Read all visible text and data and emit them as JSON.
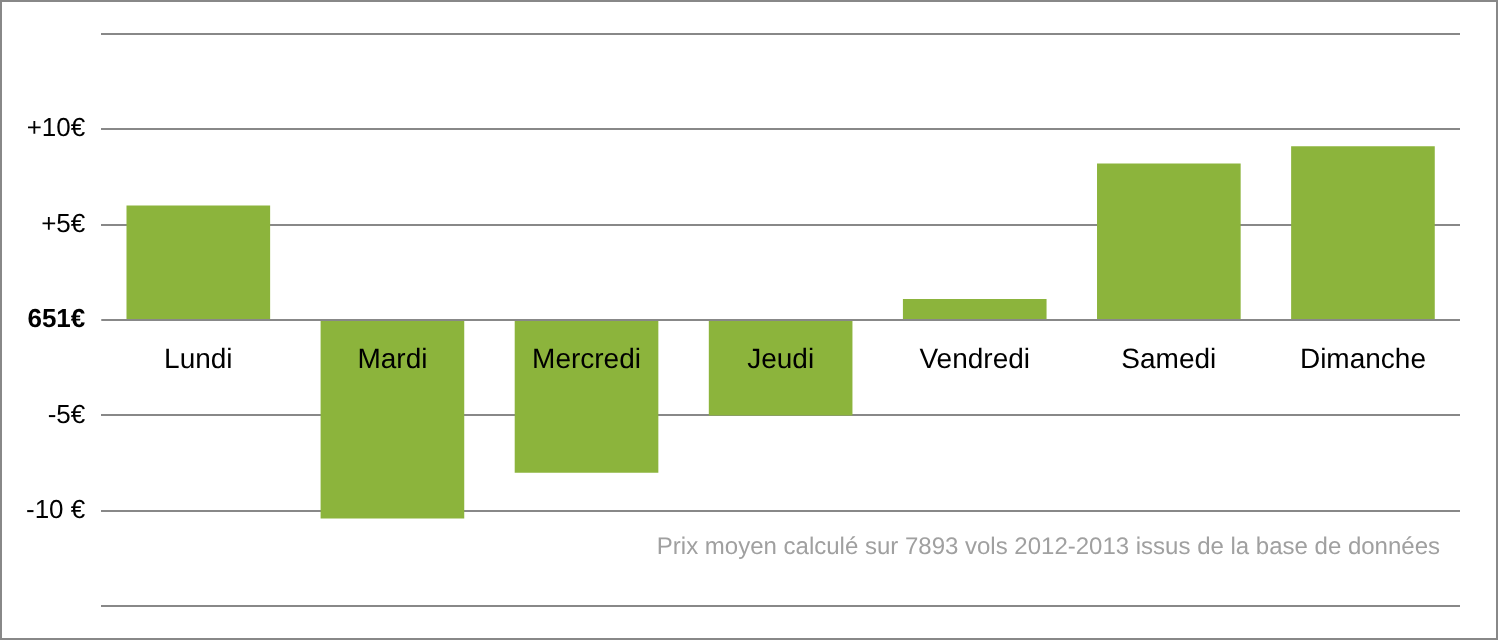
{
  "chart_data": {
    "type": "bar",
    "categories": [
      "Lundi",
      "Mardi",
      "Mercredi",
      "Jeudi",
      "Vendredi",
      "Samedi",
      "Dimanche"
    ],
    "values": [
      6,
      -10.4,
      -8,
      -5,
      1.1,
      8.2,
      9.1
    ],
    "color": "#8cb43c",
    "ylim": [
      -15,
      15
    ],
    "yticks": [
      {
        "value": 15,
        "label": null
      },
      {
        "value": 10,
        "label": "+10€"
      },
      {
        "value": 5,
        "label": "+5€"
      },
      {
        "value": -5,
        "label": "-5€"
      },
      {
        "value": -10,
        "label": "-10 €"
      },
      {
        "value": -15,
        "label": null
      }
    ],
    "ref_lines": [
      {
        "axis": "y",
        "value": 0,
        "label": "651€",
        "color": "#888888"
      }
    ],
    "grid": "y",
    "legend": false,
    "annotations": [
      "Prix moyen calculé sur 7893 vols 2012-2013 issus de la base de données"
    ]
  }
}
